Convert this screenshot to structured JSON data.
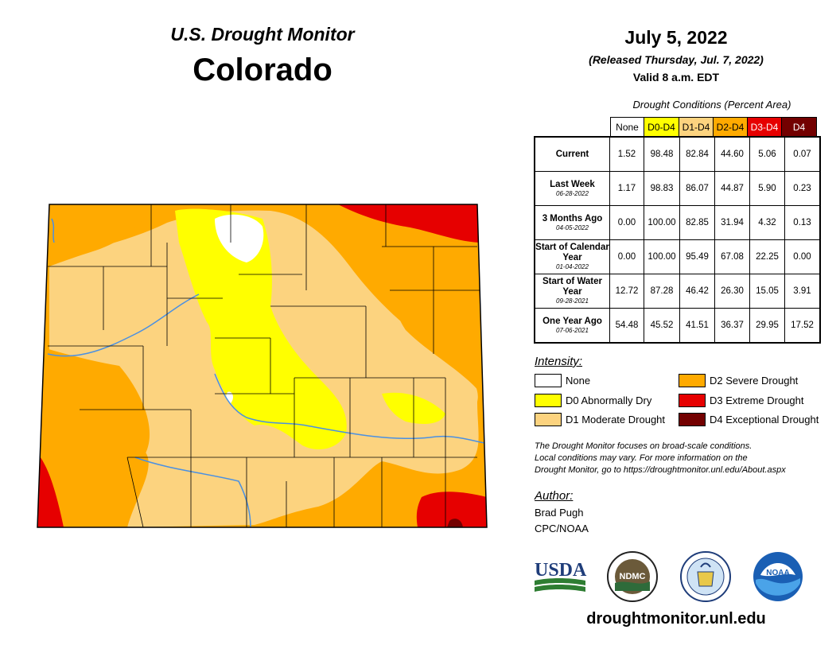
{
  "header": {
    "subtitle": "U.S. Drought Monitor",
    "state": "Colorado",
    "date": "July 5, 2022",
    "released": "(Released Thursday, Jul. 7, 2022)",
    "valid": "Valid 8 a.m. EDT"
  },
  "conditions": {
    "title": "Drought Conditions (Percent Area)",
    "columns": [
      {
        "label": "None",
        "color": "#ffffff",
        "text_color": "#000000"
      },
      {
        "label": "D0-D4",
        "color": "#ffff00",
        "text_color": "#000000"
      },
      {
        "label": "D1-D4",
        "color": "#fcd37f",
        "text_color": "#000000"
      },
      {
        "label": "D2-D4",
        "color": "#ffaa00",
        "text_color": "#000000"
      },
      {
        "label": "D3-D4",
        "color": "#e60000",
        "text_color": "#ffffff"
      },
      {
        "label": "D4",
        "color": "#730000",
        "text_color": "#ffffff"
      }
    ],
    "rows": [
      {
        "label": "Current",
        "date": "",
        "values": [
          "1.52",
          "98.48",
          "82.84",
          "44.60",
          "5.06",
          "0.07"
        ]
      },
      {
        "label": "Last Week",
        "date": "06-28-2022",
        "values": [
          "1.17",
          "98.83",
          "86.07",
          "44.87",
          "5.90",
          "0.23"
        ]
      },
      {
        "label": "3 Months Ago",
        "date": "04-05-2022",
        "values": [
          "0.00",
          "100.00",
          "82.85",
          "31.94",
          "4.32",
          "0.13"
        ]
      },
      {
        "label": "Start of Calendar Year",
        "date": "01-04-2022",
        "values": [
          "0.00",
          "100.00",
          "95.49",
          "67.08",
          "22.25",
          "0.00"
        ]
      },
      {
        "label": "Start of Water Year",
        "date": "09-28-2021",
        "values": [
          "12.72",
          "87.28",
          "46.42",
          "26.30",
          "15.05",
          "3.91"
        ]
      },
      {
        "label": "One Year Ago",
        "date": "07-06-2021",
        "values": [
          "54.48",
          "45.52",
          "41.51",
          "36.37",
          "29.95",
          "17.52"
        ]
      }
    ]
  },
  "legend": {
    "title": "Intensity:",
    "items": [
      {
        "label": "None",
        "color": "#ffffff"
      },
      {
        "label": "D0 Abnormally Dry",
        "color": "#ffff00"
      },
      {
        "label": "D1 Moderate Drought",
        "color": "#fcd37f"
      },
      {
        "label": "D2 Severe Drought",
        "color": "#ffaa00"
      },
      {
        "label": "D3 Extreme Drought",
        "color": "#e60000"
      },
      {
        "label": "D4 Exceptional Drought",
        "color": "#730000"
      }
    ]
  },
  "note": {
    "line1": "The Drought Monitor focuses on broad-scale conditions.",
    "line2": "Local conditions may vary. For more information on the",
    "line3": "Drought Monitor, go to https://droughtmonitor.unl.edu/About.aspx"
  },
  "author": {
    "heading": "Author:",
    "name": "Brad Pugh",
    "org": "CPC/NOAA"
  },
  "logos": {
    "usda": "USDA",
    "ndmc": "NDMC",
    "noaa": "NOAA"
  },
  "footer": {
    "url": "droughtmonitor.unl.edu"
  }
}
